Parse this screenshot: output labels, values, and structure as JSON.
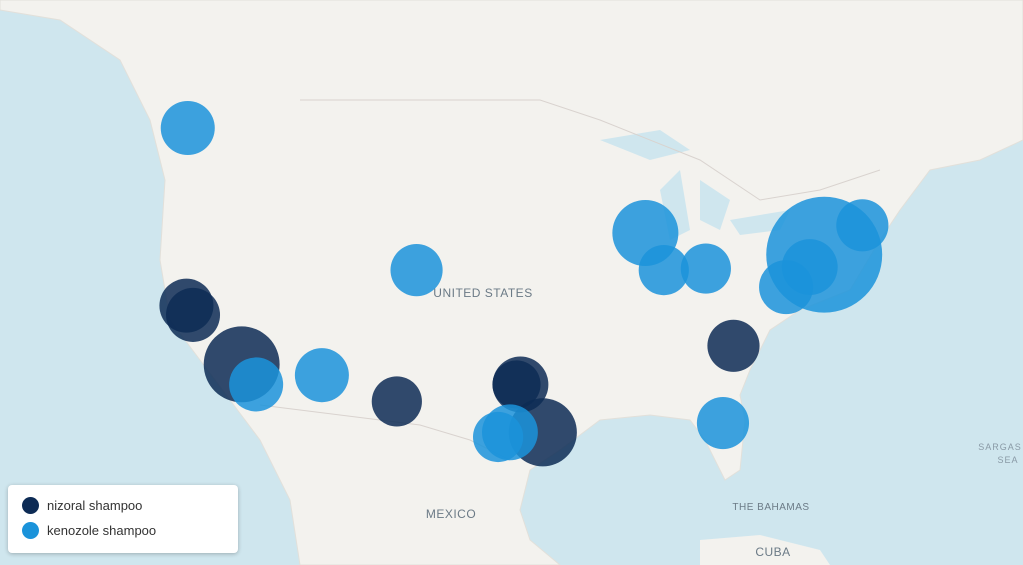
{
  "chart_data": {
    "type": "bubble-map",
    "map_labels": [
      "UNITED STATES",
      "MEXICO",
      "THE BAHAMAS",
      "CUBA",
      "SARGAS",
      "SEA"
    ],
    "series": [
      {
        "name": "nizoral shampoo",
        "color": "#0d2b55",
        "lon": [
          -122.4,
          -121.9,
          -118.2,
          -106.4,
          -97.0,
          -97.3,
          -95.3,
          -80.8
        ],
        "lat": [
          36.1,
          35.5,
          32.3,
          29.9,
          31.0,
          31.0,
          27.9,
          33.5
        ],
        "values": [
          7.3,
          7.3,
          14.4,
          6.3,
          7.8,
          5.8,
          11.6,
          6.8
        ]
      },
      {
        "name": "kenozole shampoo",
        "color": "#1b93da",
        "lon": [
          -122.3,
          -104.9,
          -112.1,
          -117.1,
          -87.5,
          -86.1,
          -82.9,
          -73.9,
          -71.0,
          -75.0,
          -76.8,
          -81.6,
          -97.8,
          -98.7
        ],
        "lat": [
          47.6,
          38.4,
          31.6,
          31.0,
          40.8,
          38.4,
          38.5,
          39.4,
          41.3,
          38.6,
          37.3,
          28.5,
          27.9,
          27.6
        ],
        "values": [
          7.3,
          6.8,
          7.3,
          7.3,
          10.9,
          6.3,
          6.3,
          33.6,
          6.8,
          7.8,
          7.3,
          6.8,
          7.8,
          6.3
        ]
      }
    ]
  }
}
